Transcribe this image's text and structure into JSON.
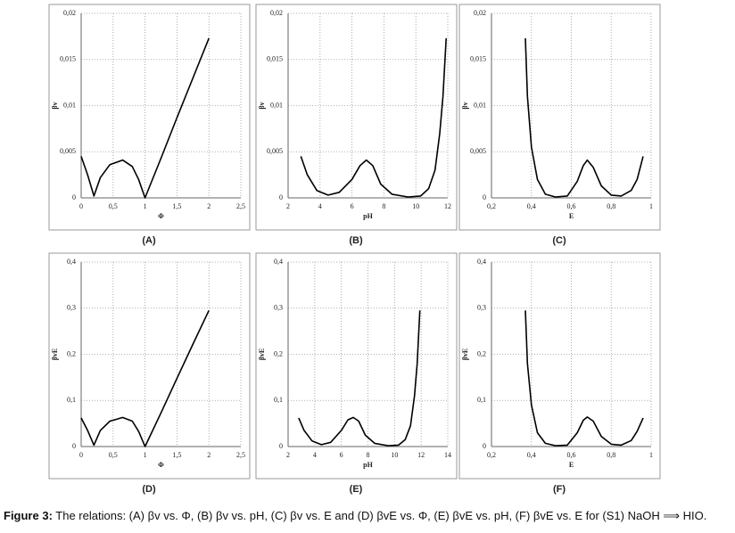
{
  "chart_data": [
    {
      "type": "line",
      "title": "(A)",
      "xlabel": "Φ",
      "ylabel": "βv",
      "color": "#000",
      "grid": true,
      "x": [
        0,
        0.1,
        0.2,
        0.3,
        0.45,
        0.65,
        0.8,
        0.9,
        1,
        1.25,
        1.5,
        1.75,
        2
      ],
      "values": [
        0.0045,
        0.0025,
        0.0002,
        0.0022,
        0.0036,
        0.0041,
        0.0034,
        0.002,
        0,
        0.0043,
        0.0087,
        0.013,
        0.0173
      ],
      "xlim": [
        0,
        2.5
      ],
      "ylim": [
        0,
        0.02
      ],
      "xticks": [
        0,
        {
          "value": 0.5,
          "label": "0,5"
        },
        1,
        {
          "value": 1.5,
          "label": "1,5"
        },
        2,
        {
          "value": 2.5,
          "label": "2,5"
        }
      ],
      "yticks": [
        0,
        {
          "value": 0.005,
          "label": "0,005"
        },
        {
          "value": 0.01,
          "label": "0,01"
        },
        {
          "value": 0.015,
          "label": "0,015"
        },
        {
          "value": 0.02,
          "label": "0,02"
        }
      ]
    },
    {
      "type": "line",
      "title": "(B)",
      "xlabel": "pH",
      "ylabel": "βv",
      "color": "#000",
      "grid": true,
      "x": [
        2.8,
        3.2,
        3.8,
        4.5,
        5.2,
        6,
        6.5,
        6.9,
        7.3,
        7.8,
        8.5,
        9.5,
        10.3,
        10.8,
        11.2,
        11.5,
        11.7,
        11.9
      ],
      "values": [
        0.0045,
        0.0025,
        0.0008,
        0.0003,
        0.0006,
        0.002,
        0.0035,
        0.0041,
        0.0035,
        0.0015,
        0.0004,
        0.0001,
        0.0002,
        0.001,
        0.003,
        0.007,
        0.011,
        0.0173
      ],
      "xlim": [
        2,
        12
      ],
      "ylim": [
        0,
        0.02
      ],
      "xticks": [
        2,
        4,
        6,
        8,
        10,
        12
      ],
      "yticks": [
        0,
        {
          "value": 0.005,
          "label": "0,005"
        },
        {
          "value": 0.01,
          "label": "0,01"
        },
        {
          "value": 0.015,
          "label": "0,015"
        },
        {
          "value": 0.02,
          "label": "0,02"
        }
      ]
    },
    {
      "type": "line",
      "title": "(C)",
      "xlabel": "E",
      "ylabel": "βv",
      "color": "#000",
      "grid": true,
      "x": [
        0.37,
        0.38,
        0.4,
        0.43,
        0.47,
        0.52,
        0.58,
        0.63,
        0.66,
        0.68,
        0.71,
        0.75,
        0.8,
        0.85,
        0.9,
        0.93,
        0.96
      ],
      "values": [
        0.0173,
        0.011,
        0.0055,
        0.002,
        0.0004,
        0.0001,
        0.0002,
        0.0018,
        0.0035,
        0.0041,
        0.0033,
        0.0013,
        0.0003,
        0.0002,
        0.0008,
        0.002,
        0.0045
      ],
      "xlim": [
        0.2,
        1
      ],
      "ylim": [
        0,
        0.02
      ],
      "xticks": [
        {
          "value": 0.2,
          "label": "0,2"
        },
        {
          "value": 0.4,
          "label": "0,4"
        },
        {
          "value": 0.6,
          "label": "0,6"
        },
        {
          "value": 0.8,
          "label": "0,8"
        },
        1
      ],
      "yticks": [
        0,
        {
          "value": 0.005,
          "label": "0,005"
        },
        {
          "value": 0.01,
          "label": "0,01"
        },
        {
          "value": 0.015,
          "label": "0,015"
        },
        {
          "value": 0.02,
          "label": "0,02"
        }
      ]
    },
    {
      "type": "line",
      "title": "(D)",
      "xlabel": "Φ",
      "ylabel": "βvE",
      "color": "#000",
      "grid": true,
      "x": [
        0,
        0.1,
        0.2,
        0.3,
        0.45,
        0.65,
        0.8,
        0.9,
        1,
        1.25,
        1.5,
        1.75,
        2
      ],
      "values": [
        0.062,
        0.035,
        0.003,
        0.035,
        0.055,
        0.063,
        0.055,
        0.033,
        0,
        0.073,
        0.148,
        0.222,
        0.295
      ],
      "xlim": [
        0,
        2.5
      ],
      "ylim": [
        0,
        0.4
      ],
      "xticks": [
        0,
        {
          "value": 0.5,
          "label": "0,5"
        },
        1,
        {
          "value": 1.5,
          "label": "1,5"
        },
        2,
        {
          "value": 2.5,
          "label": "2,5"
        }
      ],
      "yticks": [
        0,
        {
          "value": 0.1,
          "label": "0,1"
        },
        {
          "value": 0.2,
          "label": "0,2"
        },
        {
          "value": 0.3,
          "label": "0,3"
        },
        {
          "value": 0.4,
          "label": "0,4"
        }
      ]
    },
    {
      "type": "line",
      "title": "(E)",
      "xlabel": "pH",
      "ylabel": "βvE",
      "color": "#000",
      "grid": true,
      "x": [
        2.8,
        3.2,
        3.8,
        4.5,
        5.2,
        6,
        6.5,
        6.9,
        7.3,
        7.8,
        8.5,
        9.5,
        10.3,
        10.8,
        11.2,
        11.5,
        11.7,
        11.9
      ],
      "values": [
        0.062,
        0.035,
        0.012,
        0.004,
        0.009,
        0.035,
        0.058,
        0.063,
        0.055,
        0.025,
        0.007,
        0.002,
        0.003,
        0.015,
        0.045,
        0.11,
        0.18,
        0.295
      ],
      "xlim": [
        2,
        14
      ],
      "ylim": [
        0,
        0.4
      ],
      "xticks": [
        2,
        4,
        6,
        8,
        10,
        12,
        14
      ],
      "yticks": [
        0,
        {
          "value": 0.1,
          "label": "0,1"
        },
        {
          "value": 0.2,
          "label": "0,2"
        },
        {
          "value": 0.3,
          "label": "0,3"
        },
        {
          "value": 0.4,
          "label": "0,4"
        }
      ]
    },
    {
      "type": "line",
      "title": "(F)",
      "xlabel": "E",
      "ylabel": "βvE",
      "color": "#000",
      "grid": true,
      "x": [
        0.37,
        0.38,
        0.4,
        0.43,
        0.47,
        0.52,
        0.58,
        0.63,
        0.66,
        0.68,
        0.71,
        0.75,
        0.8,
        0.85,
        0.9,
        0.93,
        0.96
      ],
      "values": [
        0.295,
        0.18,
        0.09,
        0.03,
        0.007,
        0.002,
        0.003,
        0.03,
        0.057,
        0.064,
        0.055,
        0.022,
        0.005,
        0.003,
        0.013,
        0.033,
        0.062
      ],
      "xlim": [
        0.2,
        1
      ],
      "ylim": [
        0,
        0.4
      ],
      "xticks": [
        {
          "value": 0.2,
          "label": "0,2"
        },
        {
          "value": 0.4,
          "label": "0,4"
        },
        {
          "value": 0.6,
          "label": "0,6"
        },
        {
          "value": 0.8,
          "label": "0,8"
        },
        1
      ],
      "yticks": [
        0,
        {
          "value": 0.1,
          "label": "0,1"
        },
        {
          "value": 0.2,
          "label": "0,2"
        },
        {
          "value": 0.3,
          "label": "0,3"
        },
        {
          "value": 0.4,
          "label": "0,4"
        }
      ]
    }
  ],
  "caption": {
    "label": "Figure 3:",
    "text": "The relations: (A) βv vs. Φ, (B) βv vs. pH, (C) βv vs. E and (D) βvE vs. Φ, (E) βvE vs. pH, (F) βvE vs. E for (S1) NaOH ⟹ HIO."
  }
}
